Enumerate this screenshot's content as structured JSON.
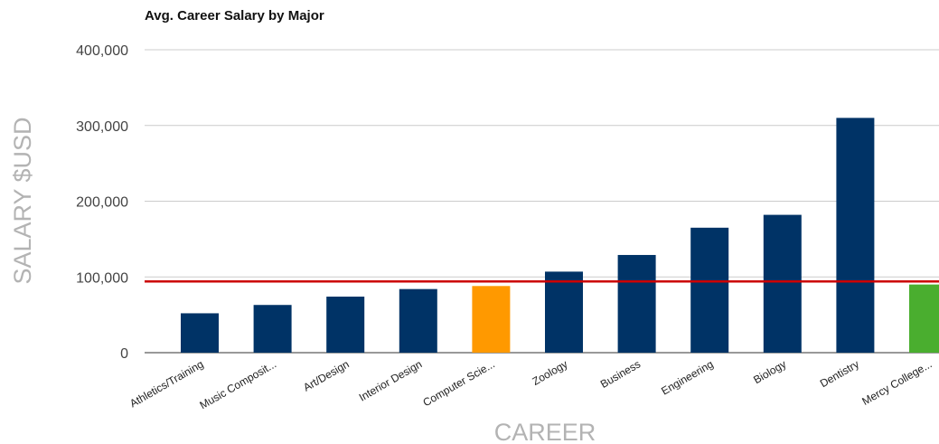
{
  "chart_data": {
    "type": "bar",
    "title": "Avg. Career Salary by Major",
    "xlabel": "CAREER",
    "ylabel": "SALARY $USD",
    "categories": [
      "Athletics/Training",
      "Music Composit...",
      "Art/Design",
      "Interior Design",
      "Computer Scie...",
      "Zoology",
      "Business",
      "Engineering",
      "Biology",
      "Dentistry",
      "Mercy College..."
    ],
    "values": [
      52000,
      63000,
      74000,
      84000,
      88000,
      107000,
      129000,
      165000,
      182000,
      310000,
      90000
    ],
    "bar_colors": [
      "#003366",
      "#003366",
      "#003366",
      "#003366",
      "#ff9900",
      "#003366",
      "#003366",
      "#003366",
      "#003366",
      "#003366",
      "#4aae2f"
    ],
    "ylim": [
      0,
      400000
    ],
    "yticks": [
      0,
      100000,
      200000,
      300000,
      400000
    ],
    "ytick_labels": [
      "0",
      "100,000",
      "200,000",
      "300,000",
      "400,000"
    ],
    "reference_line": {
      "value": 94000,
      "color": "#cc0000"
    },
    "grid": true
  }
}
